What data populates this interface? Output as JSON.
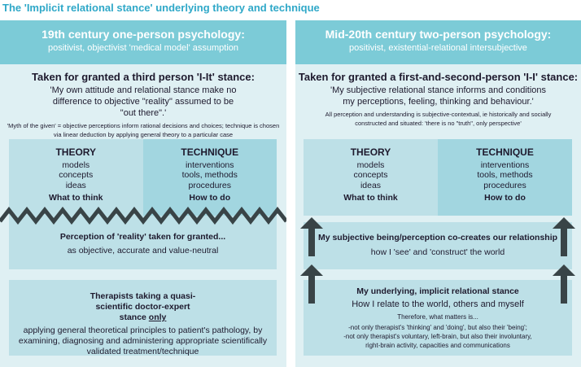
{
  "title": "The 'Implicit relational stance' underlying theory and technique",
  "left": {
    "header_title": "19th century one-person psychology:",
    "header_sub": "positivist, objectivist 'medical model' assumption",
    "stance_title": "Taken for granted a third person 'I-It' stance:",
    "stance_quote": "'My own attitude and relational stance make no difference to objective \"reality\" assumed to be \"out there\".'",
    "stance_note": "'Myth of the given' = objective perceptions inform rational decisions and choices; technique is chosen via linear deduction by applying general theory to a particular case",
    "theory": {
      "heading": "THEORY",
      "items": [
        "models",
        "concepts",
        "ideas"
      ],
      "footer": "What to think"
    },
    "technique": {
      "heading": "TECHNIQUE",
      "items": [
        "interventions",
        "tools, methods",
        "procedures"
      ],
      "footer": "How to do"
    },
    "perception_title": "Perception of 'reality' taken for granted...",
    "perception_sub": "as objective, accurate and value-neutral",
    "therapist_title": "Therapists taking a quasi-scientific doctor-expert stance ",
    "therapist_title_emph": "only",
    "therapist_body": "applying general theoretical principles to patient's pathology, by examining, diagnosing and administering appropriate scientifically validated treatment/technique"
  },
  "right": {
    "header_title": "Mid-20th century two-person psychology:",
    "header_sub": "positivist, existential-relational intersubjective",
    "stance_title": "Taken for granted a first-and-second-person 'I-I' stance:",
    "stance_quote": "'My subjective relational stance informs and conditions my perceptions, feeling, thinking and behaviour.'",
    "stance_note": "All perception and understanding is subjective-contextual, ie historically and socially constructed and situated: 'there is no \"truth\", only perspective'",
    "theory": {
      "heading": "THEORY",
      "items": [
        "models",
        "concepts",
        "ideas"
      ],
      "footer": "What to think"
    },
    "technique": {
      "heading": "TECHNIQUE",
      "items": [
        "interventions",
        "tools, methods",
        "procedures"
      ],
      "footer": "How to do"
    },
    "cocreate_title": "My subjective being/perception co-creates our relationship",
    "cocreate_sub": "how I 'see' and 'construct' the world",
    "underlying_title": "My underlying, implicit relational stance",
    "underlying_sub": "How I relate to the world, others and myself",
    "underlying_lead": "Therefore, what matters is...",
    "underlying_points": [
      "-not only therapist's 'thinking' and 'doing', but also their 'being';",
      "-not only therapist's voluntary, left-brain, but also their involuntary, right-brain activity, capacities and communications"
    ]
  },
  "colors": {
    "header": "#7ccbd7",
    "panel": "#dff0f3",
    "theory": "#bde0e7",
    "technique": "#a2d6e0",
    "arrow": "#394447",
    "title": "#2fa8c8"
  }
}
